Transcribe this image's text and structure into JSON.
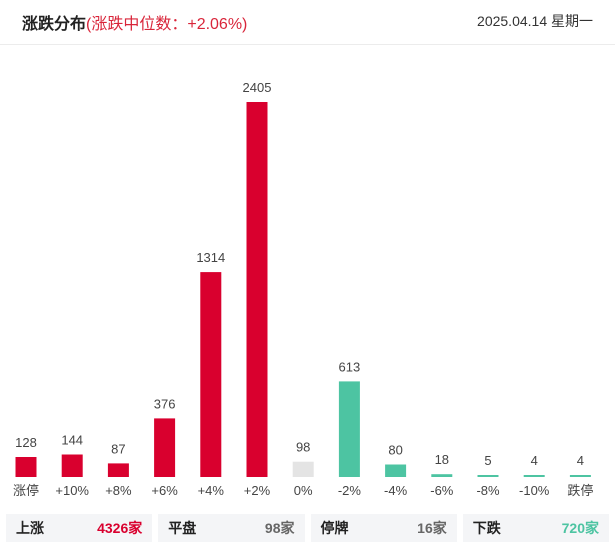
{
  "header": {
    "title": "涨跌分布",
    "median": "(涨跌中位数：+2.06%)",
    "date": "2025.04.14 星期一"
  },
  "colors": {
    "up": "#d9002e",
    "flat": "#e4e4e4",
    "down": "#4dc4a2"
  },
  "chart_data": {
    "type": "bar",
    "categories": [
      "涨停",
      "+10%",
      "+8%",
      "+6%",
      "+4%",
      "+2%",
      "0%",
      "-2%",
      "-4%",
      "-6%",
      "-8%",
      "-10%",
      "跌停"
    ],
    "values": [
      128,
      144,
      87,
      376,
      1314,
      2405,
      98,
      613,
      80,
      18,
      5,
      4,
      4
    ],
    "bar_colors": [
      "up",
      "up",
      "up",
      "up",
      "up",
      "up",
      "flat",
      "down",
      "down",
      "down",
      "down",
      "down",
      "down"
    ],
    "ylim": [
      0,
      2405
    ],
    "grid": false
  },
  "summary": [
    {
      "label": "上涨",
      "value": "4326家",
      "color": "#d9002e"
    },
    {
      "label": "平盘",
      "value": "98家",
      "color": "#666666"
    },
    {
      "label": "停牌",
      "value": "16家",
      "color": "#666666"
    },
    {
      "label": "下跌",
      "value": "720家",
      "color": "#4dc4a2"
    }
  ]
}
